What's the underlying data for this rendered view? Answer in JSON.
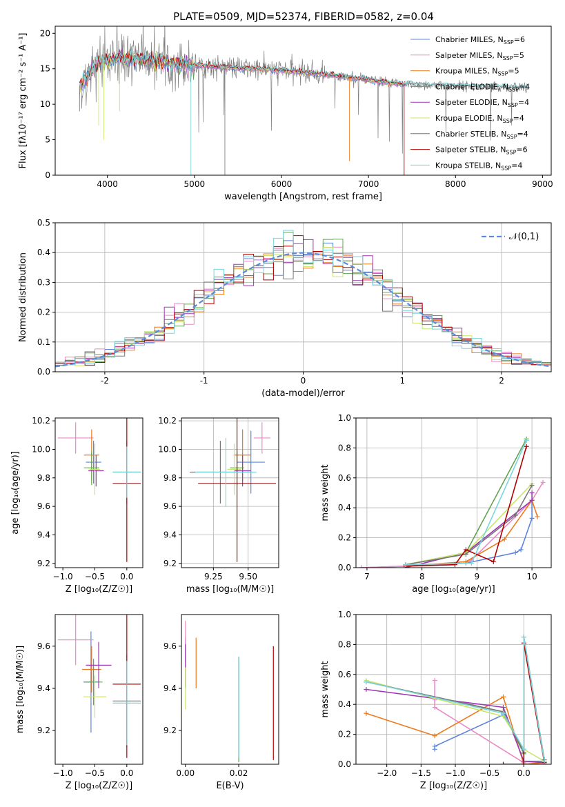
{
  "title": "PLATE=0509, MJD=52374, FIBERID=0582, z=0.04",
  "colors": {
    "series": [
      "#6a8ed8",
      "#e57fbf",
      "#b8860b",
      "#5a8a5a",
      "#9b30b0",
      "#d8e040",
      "#505050",
      "#c00000",
      "#70d0d8"
    ],
    "bright": [
      "#5b84db",
      "#e88ac6",
      "#ec7a1e",
      "#62a352",
      "#9d38b3",
      "#c8e66a",
      "#777777",
      "#b30000",
      "#7ad6dc"
    ],
    "gaussian": "#5b8ad6"
  },
  "chart_data": [
    {
      "type": "line",
      "name": "spectrum",
      "xlabel": "wavelength [Angstrom, rest frame]",
      "ylabel": "Flux [fλ10⁻¹⁷ erg cm⁻² s⁻¹ A⁻¹]",
      "xlim": [
        3400,
        9100
      ],
      "ylim": [
        0,
        21
      ],
      "xticks": [
        4000,
        5000,
        6000,
        7000,
        8000,
        9000
      ],
      "yticks": [
        0,
        5,
        10,
        15,
        20
      ],
      "grid": false,
      "legend_placement": "top-right",
      "legend": [
        "Chabrier MILES, N_SSP=6",
        "Salpeter MILES, N_SSP=5",
        "Kroupa MILES, N_SSP=5",
        "Chabrier ELODIE, N_SSP=4",
        "Salpeter ELODIE, N_SSP=4",
        "Kroupa ELODIE, N_SSP=4",
        "Chabrier STELIB, N_SSP=4",
        "Salpeter STELIB, N_SSP=6",
        "Kroupa STELIB, N_SSP=4"
      ],
      "data_trend": {
        "x": [
          3680,
          3900,
          4100,
          4400,
          4700,
          5000,
          5500,
          6000,
          6500,
          7000,
          7400,
          8000,
          8500,
          8830
        ],
        "y": [
          12.5,
          15.8,
          16.5,
          16.4,
          15.9,
          15.5,
          15.1,
          14.8,
          14.2,
          13.4,
          12.8,
          12.6,
          12.4,
          12.4
        ]
      },
      "model_end": [
        7420,
        7400,
        7400,
        7420,
        7420,
        7420,
        8830,
        7420,
        8830
      ]
    },
    {
      "type": "line",
      "name": "residual-histogram",
      "xlabel": "(data-model)/error",
      "ylabel": "Normed distribution",
      "xlim": [
        -2.5,
        2.5
      ],
      "ylim": [
        0,
        0.5
      ],
      "xticks": [
        -2,
        -1,
        0,
        1,
        2
      ],
      "yticks": [
        0.0,
        0.1,
        0.2,
        0.3,
        0.4,
        0.5
      ],
      "grid": true,
      "legend_placement": "top-right",
      "legend": [
        "𝒩(0,1)"
      ],
      "bin_width": 0.1
    },
    {
      "type": "scatter",
      "name": "age-vs-Z",
      "xlabel": "Z [log₁₀(Z/Z☉)]",
      "ylabel": "age  [log₁₀(age/yr)]",
      "xlim": [
        -1.12,
        0.25
      ],
      "ylim": [
        9.17,
        10.22
      ],
      "xticks": [
        -1.0,
        -0.5,
        0.0
      ],
      "xtick_labels": [
        "−1.0",
        "−0.5",
        "0.0"
      ],
      "yticks": [
        9.2,
        9.4,
        9.6,
        9.8,
        10.0,
        10.2
      ],
      "grid": false,
      "points": [
        {
          "x": -0.52,
          "y": 9.91,
          "xerr": 0.12,
          "yerr": 0.15
        },
        {
          "x": -0.8,
          "y": 10.08,
          "xerr": 0.28,
          "yerr": 0.11
        },
        {
          "x": -0.55,
          "y": 9.96,
          "xerr": 0.12,
          "yerr": 0.18
        },
        {
          "x": -0.55,
          "y": 9.87,
          "xerr": 0.12,
          "yerr": 0.12
        },
        {
          "x": -0.48,
          "y": 9.85,
          "xerr": 0.12,
          "yerr": 0.11
        },
        {
          "x": -0.5,
          "y": 9.86,
          "xerr": 0.08,
          "yerr": 0.18
        },
        {
          "x": 0.0,
          "y": 9.84,
          "xerr": 0.22,
          "yerr": 0.22
        },
        {
          "x": 0.0,
          "y": 9.76,
          "xerr": 0.22,
          "yerr": 0.55
        },
        {
          "x": 0.0,
          "y": 9.84,
          "xerr": 0.22,
          "yerr": 0.18
        }
      ]
    },
    {
      "type": "scatter",
      "name": "age-vs-mass",
      "xlabel": "mass [log₁₀(M/M☉)]",
      "ylabel": "",
      "xlim": [
        9.02,
        9.72
      ],
      "ylim": [
        9.17,
        10.22
      ],
      "xticks": [
        9.25,
        9.5
      ],
      "xtick_labels": [
        "9.25",
        "9.50"
      ],
      "yticks": [
        9.2,
        9.4,
        9.6,
        9.8,
        10.0,
        10.2
      ],
      "grid": true,
      "points": [
        {
          "x": 9.52,
          "y": 9.91,
          "xerr": 0.1,
          "yerr": 0.22
        },
        {
          "x": 9.6,
          "y": 10.08,
          "xerr": 0.06,
          "yerr": 0.11
        },
        {
          "x": 9.46,
          "y": 9.96,
          "xerr": 0.06,
          "yerr": 0.18
        },
        {
          "x": 9.42,
          "y": 9.87,
          "xerr": 0.05,
          "yerr": 0.12
        },
        {
          "x": 9.46,
          "y": 9.85,
          "xerr": 0.06,
          "yerr": 0.11
        },
        {
          "x": 9.4,
          "y": 9.86,
          "xerr": 0.05,
          "yerr": 0.18
        },
        {
          "x": 9.3,
          "y": 9.84,
          "xerr": 0.22,
          "yerr": 0.22
        },
        {
          "x": 9.42,
          "y": 9.76,
          "xerr": 0.28,
          "yerr": 0.55
        },
        {
          "x": 9.34,
          "y": 9.84,
          "xerr": 0.22,
          "yerr": 0.24
        }
      ]
    },
    {
      "type": "line",
      "name": "mass-weight-vs-age",
      "xlabel": "age  [log₁₀(age/yr)]",
      "ylabel": "mass weight",
      "xlim": [
        6.8,
        10.35
      ],
      "ylim": [
        0,
        1
      ],
      "xticks": [
        7,
        8,
        9,
        10
      ],
      "yticks": [
        0.0,
        0.2,
        0.4,
        0.6,
        0.8,
        1.0
      ],
      "grid": true,
      "series": [
        {
          "x": [
            6.9,
            7.7,
            8.8,
            9.7,
            9.8,
            10.0,
            10.0
          ],
          "y": [
            0.0,
            0.01,
            0.03,
            0.1,
            0.12,
            0.33,
            0.45
          ]
        },
        {
          "x": [
            6.9,
            7.7,
            8.8,
            8.9,
            10.0,
            10.2
          ],
          "y": [
            0.0,
            0.01,
            0.03,
            0.05,
            0.45,
            0.57
          ]
        },
        {
          "x": [
            7.7,
            8.8,
            9.5,
            10.0,
            10.1
          ],
          "y": [
            0.01,
            0.04,
            0.19,
            0.45,
            0.34
          ]
        },
        {
          "x": [
            7.7,
            8.8,
            9.9
          ],
          "y": [
            0.02,
            0.1,
            0.86
          ]
        },
        {
          "x": [
            7.7,
            8.8,
            10.0,
            10.0
          ],
          "y": [
            0.0,
            0.1,
            0.45,
            0.5
          ]
        },
        {
          "x": [
            7.7,
            8.8,
            10.0
          ],
          "y": [
            0.02,
            0.1,
            0.56
          ]
        },
        {
          "x": [
            7.7,
            8.8,
            9.7,
            10.0
          ],
          "y": [
            0.02,
            0.09,
            0.35,
            0.55
          ]
        },
        {
          "x": [
            7.7,
            8.6,
            8.8,
            9.3,
            9.9
          ],
          "y": [
            0.01,
            0.02,
            0.12,
            0.04,
            0.81
          ]
        },
        {
          "x": [
            7.7,
            8.9,
            9.9
          ],
          "y": [
            0.02,
            0.03,
            0.85
          ]
        }
      ]
    },
    {
      "type": "scatter",
      "name": "mass-vs-Z",
      "xlabel": "Z [log₁₀(Z/Z☉)]",
      "ylabel": "mass [log₁₀(M/M☉)]",
      "xlim": [
        -1.12,
        0.25
      ],
      "ylim": [
        9.04,
        9.75
      ],
      "xticks": [
        -1.0,
        -0.5,
        0.0
      ],
      "xtick_labels": [
        "−1.0",
        "−0.5",
        "0.0"
      ],
      "yticks": [
        9.2,
        9.4,
        9.6
      ],
      "grid": false,
      "points": [
        {
          "x": -0.56,
          "y": 9.43,
          "xerr": 0.12,
          "yerr": 0.24
        },
        {
          "x": -0.8,
          "y": 9.63,
          "xerr": 0.28,
          "yerr": 0.12
        },
        {
          "x": -0.55,
          "y": 9.49,
          "xerr": 0.15,
          "yerr": 0.11
        },
        {
          "x": -0.52,
          "y": 9.43,
          "xerr": 0.14,
          "yerr": 0.11
        },
        {
          "x": -0.44,
          "y": 9.51,
          "xerr": 0.2,
          "yerr": 0.11
        },
        {
          "x": -0.5,
          "y": 9.36,
          "xerr": 0.18,
          "yerr": 0.1
        },
        {
          "x": 0.0,
          "y": 9.34,
          "xerr": 0.22,
          "yerr": 0.22
        },
        {
          "x": 0.0,
          "y": 9.42,
          "xerr": 0.22,
          "yerr": 0.35
        },
        {
          "x": 0.0,
          "y": 9.33,
          "xerr": 0.22,
          "yerr": 0.2
        }
      ]
    },
    {
      "type": "scatter",
      "name": "mass-vs-EBV",
      "xlabel": "E(B-V)",
      "ylabel": "",
      "xlim": [
        -0.0015,
        0.035
      ],
      "ylim": [
        9.04,
        9.75
      ],
      "xticks": [
        0.0,
        0.02
      ],
      "xtick_labels": [
        "0.00",
        "0.02"
      ],
      "yticks": [
        9.2,
        9.4,
        9.6
      ],
      "grid": false,
      "points": [
        {
          "x": 0.0,
          "y": 9.52,
          "xerr": 0,
          "yerr": 0.12
        },
        {
          "x": 0.0,
          "y": 9.6,
          "xerr": 0,
          "yerr": 0.12
        },
        {
          "x": 0.004,
          "y": 9.52,
          "xerr": 0,
          "yerr": 0.12
        },
        {
          "x": 0.02,
          "y": 9.3,
          "xerr": 0,
          "yerr": 0.25
        },
        {
          "x": 0.0,
          "y": 9.51,
          "xerr": 0,
          "yerr": 0.1
        },
        {
          "x": 0.0,
          "y": 9.4,
          "xerr": 0,
          "yerr": 0.1
        },
        {
          "x": 0.02,
          "y": 9.31,
          "xerr": 0,
          "yerr": 0.24
        },
        {
          "x": 0.033,
          "y": 9.33,
          "xerr": 0,
          "yerr": 0.27
        },
        {
          "x": 0.02,
          "y": 9.31,
          "xerr": 0,
          "yerr": 0.24
        }
      ]
    },
    {
      "type": "line",
      "name": "mass-weight-vs-Z",
      "xlabel": "Z [log₁₀(Z/Z☉)]",
      "ylabel": "mass weight",
      "xlim": [
        -2.45,
        0.4
      ],
      "ylim": [
        0,
        1
      ],
      "xticks": [
        -2.0,
        -1.5,
        -1.0,
        -0.5,
        0.0
      ],
      "xtick_labels": [
        "−2.0",
        "−1.5",
        "−1.0",
        "−0.5",
        "0.0"
      ],
      "yticks": [
        0.0,
        0.2,
        0.4,
        0.6,
        0.8,
        1.0
      ],
      "grid": true,
      "series": [
        {
          "x": [
            -1.3,
            -1.3,
            -0.3,
            0.0,
            0.0,
            0.3
          ],
          "y": [
            0.1,
            0.12,
            0.33,
            0.1,
            0.02,
            0.02
          ]
        },
        {
          "x": [
            -1.3,
            -1.3,
            -1.3,
            0.0,
            0.0,
            0.3
          ],
          "y": [
            0.56,
            0.43,
            0.38,
            0.01,
            0.0,
            0.01
          ]
        },
        {
          "x": [
            -2.3,
            -1.3,
            -0.3,
            0.0,
            0.3
          ],
          "y": [
            0.34,
            0.19,
            0.45,
            0.0,
            0.01
          ]
        },
        {
          "x": [
            -2.3,
            -0.3,
            0.0,
            0.0,
            0.3
          ],
          "y": [
            0.55,
            0.35,
            0.07,
            0.85,
            0.02
          ]
        },
        {
          "x": [
            -2.3,
            -0.3,
            0.0,
            0.3
          ],
          "y": [
            0.5,
            0.38,
            0.02,
            0.01
          ]
        },
        {
          "x": [
            -2.3,
            -0.3,
            0.0,
            0.3
          ],
          "y": [
            0.56,
            0.32,
            0.1,
            0.02
          ]
        },
        {
          "x": [
            -2.3,
            -0.3,
            0.0,
            0.0,
            0.3
          ],
          "y": [
            0.55,
            0.35,
            0.08,
            0.85,
            0.03
          ]
        },
        {
          "x": [
            -0.3,
            0.0,
            0.0,
            0.3
          ],
          "y": [
            0.0,
            0.0,
            0.81,
            0.01
          ]
        },
        {
          "x": [
            -2.3,
            -0.3,
            0.0,
            0.0,
            0.3
          ],
          "y": [
            0.55,
            0.34,
            0.1,
            0.85,
            0.02
          ]
        }
      ]
    }
  ]
}
